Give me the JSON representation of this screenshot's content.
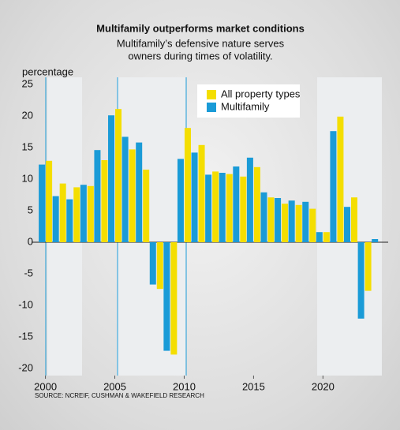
{
  "chart_data": {
    "type": "bar",
    "title": "Multifamily outperforms market conditions",
    "subtitle": [
      "Multifamily’s defensive nature serves",
      "owners during times of volatility."
    ],
    "y_label": "percentage",
    "source": "SOURCE: NCREIF, CUSHMAN & WAKEFIELD RESEARCH",
    "x": [
      2000,
      2001,
      2002,
      2003,
      2004,
      2005,
      2006,
      2007,
      2008,
      2009,
      2010,
      2011,
      2012,
      2013,
      2014,
      2015,
      2016,
      2017,
      2018,
      2019,
      2020,
      2021,
      2022,
      2023,
      2024
    ],
    "series": [
      {
        "name": "All property types",
        "color": "#f4de00",
        "values": [
          12.9,
          9.3,
          8.7,
          8.9,
          13.0,
          21.1,
          14.7,
          11.5,
          -7.4,
          -17.8,
          18.1,
          15.4,
          11.2,
          10.8,
          10.4,
          11.9,
          7.1,
          6.1,
          5.9,
          5.3,
          1.6,
          19.9,
          7.1,
          -7.7,
          null
        ]
      },
      {
        "name": "Multifamily",
        "color": "#1a9bd7",
        "values": [
          12.3,
          7.3,
          6.8,
          9.1,
          14.6,
          20.1,
          16.7,
          15.8,
          -6.7,
          -17.2,
          13.2,
          14.2,
          10.7,
          11.0,
          12.0,
          13.4,
          7.9,
          7.0,
          6.6,
          6.4,
          1.6,
          17.6,
          5.6,
          -12.1,
          0.5
        ]
      }
    ],
    "xlim": [
      1999,
      2024.7
    ],
    "xticks": [
      2000,
      2005,
      2010,
      2015,
      2020
    ],
    "ylim": [
      -21,
      25
    ],
    "yticks": [
      -20,
      -15,
      -10,
      -5,
      0,
      5,
      10,
      15,
      20,
      25
    ],
    "legend": "top-center"
  }
}
